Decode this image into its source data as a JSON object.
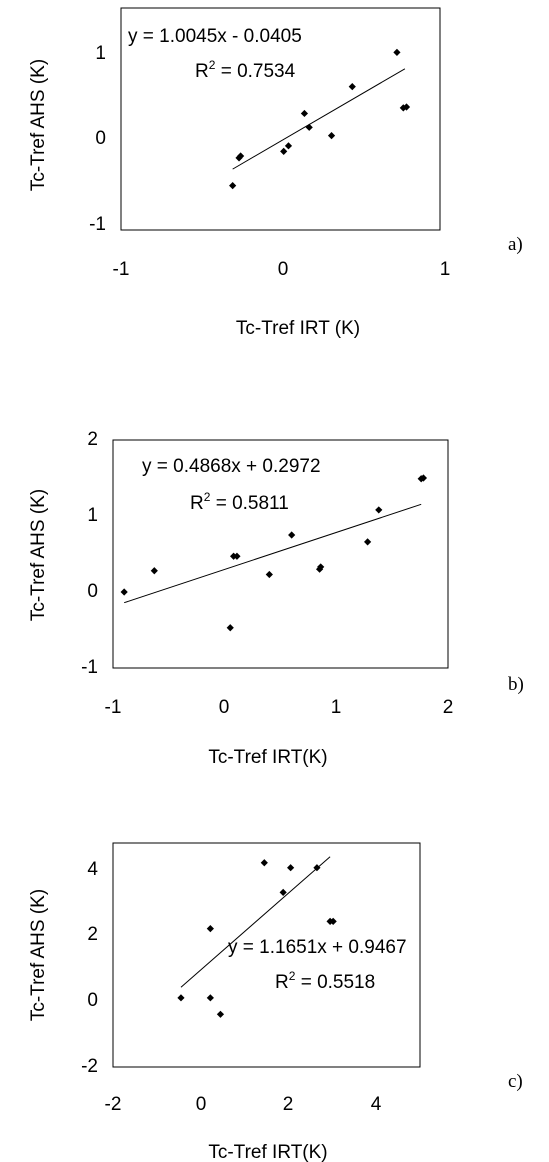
{
  "chart_data": [
    {
      "type": "scatter",
      "panel_label": "a)",
      "xlabel": "Tc-Tref IRT (K)",
      "ylabel": "Tc-Tref  AHS (K)",
      "xlim": [
        -1,
        1
      ],
      "ylim": [
        -1,
        1.4
      ],
      "xticks": [
        -1,
        0,
        1
      ],
      "yticks": [
        -1,
        0,
        1
      ],
      "xtick_labels": [
        "-1",
        "0",
        "1"
      ],
      "ytick_labels": [
        "-1",
        "0",
        "1"
      ],
      "grid": false,
      "points": [
        {
          "x": -0.3,
          "y": -0.52
        },
        {
          "x": -0.26,
          "y": -0.22
        },
        {
          "x": -0.25,
          "y": -0.2
        },
        {
          "x": 0.02,
          "y": -0.15
        },
        {
          "x": 0.05,
          "y": -0.09
        },
        {
          "x": 0.15,
          "y": 0.26
        },
        {
          "x": 0.18,
          "y": 0.11
        },
        {
          "x": 0.32,
          "y": 0.02
        },
        {
          "x": 0.45,
          "y": 0.55
        },
        {
          "x": 0.73,
          "y": 0.92
        },
        {
          "x": 0.77,
          "y": 0.32
        },
        {
          "x": 0.79,
          "y": 0.33
        }
      ],
      "trendline": {
        "slope": 1.0045,
        "intercept": -0.0405,
        "x_range": [
          -0.3,
          0.78
        ]
      },
      "equation": "y = 1.0045x - 0.0405",
      "r2_prefix": "R",
      "r2_exponent": "2",
      "r2_value": " = 0.7534"
    },
    {
      "type": "scatter",
      "panel_label": "b)",
      "xlabel": "Tc-Tref  IRT(K)",
      "ylabel": "Tc-Tref  AHS (K)",
      "xlim": [
        -1,
        2
      ],
      "ylim": [
        -1,
        2
      ],
      "xticks": [
        -1,
        0,
        1,
        2
      ],
      "yticks": [
        -1,
        0,
        1,
        2
      ],
      "xtick_labels": [
        "-1",
        "0",
        "1",
        "2"
      ],
      "ytick_labels": [
        "-1",
        "0",
        "1",
        "2"
      ],
      "grid": false,
      "points": [
        {
          "x": -0.9,
          "y": 0.0
        },
        {
          "x": -0.63,
          "y": 0.28
        },
        {
          "x": 0.05,
          "y": -0.47
        },
        {
          "x": 0.08,
          "y": 0.47
        },
        {
          "x": 0.11,
          "y": 0.47
        },
        {
          "x": 0.4,
          "y": 0.23
        },
        {
          "x": 0.6,
          "y": 0.75
        },
        {
          "x": 0.85,
          "y": 0.3
        },
        {
          "x": 0.86,
          "y": 0.33
        },
        {
          "x": 1.28,
          "y": 0.66
        },
        {
          "x": 1.38,
          "y": 1.08
        },
        {
          "x": 1.76,
          "y": 1.49
        },
        {
          "x": 1.78,
          "y": 1.5
        }
      ],
      "trendline": {
        "slope": 0.4868,
        "intercept": 0.2972,
        "x_range": [
          -0.9,
          1.76
        ]
      },
      "equation": "y = 0.4868x + 0.2972",
      "r2_prefix": "R",
      "r2_exponent": "2",
      "r2_value": " = 0.5811"
    },
    {
      "type": "scatter",
      "panel_label": "c)",
      "xlabel": "Tc-Tref  IRT(K)",
      "ylabel": "Tc-Tref  AHS (K)",
      "xlim": [
        -2,
        5
      ],
      "ylim": [
        -2,
        4.8
      ],
      "xticks": [
        -2,
        0,
        2,
        4
      ],
      "yticks": [
        -2,
        0,
        2,
        4
      ],
      "xtick_labels": [
        "-2",
        "0",
        "2",
        "4"
      ],
      "ytick_labels": [
        "-2",
        "0",
        "2",
        "4"
      ],
      "grid": false,
      "points": [
        {
          "x": -0.45,
          "y": 0.1
        },
        {
          "x": 0.22,
          "y": 2.2
        },
        {
          "x": 0.22,
          "y": 0.1
        },
        {
          "x": 0.45,
          "y": -0.4
        },
        {
          "x": 1.45,
          "y": 4.2
        },
        {
          "x": 1.88,
          "y": 3.3
        },
        {
          "x": 2.05,
          "y": 4.05
        },
        {
          "x": 2.65,
          "y": 4.05
        },
        {
          "x": 2.95,
          "y": 2.42
        },
        {
          "x": 3.02,
          "y": 2.42
        }
      ],
      "trendline": {
        "slope": 1.1651,
        "intercept": 0.9467,
        "x_range": [
          -0.45,
          2.95
        ]
      },
      "equation": "y = 1.1651x + 0.9467",
      "r2_prefix": "R",
      "r2_exponent": "2",
      "r2_value": " = 0.5518"
    }
  ]
}
